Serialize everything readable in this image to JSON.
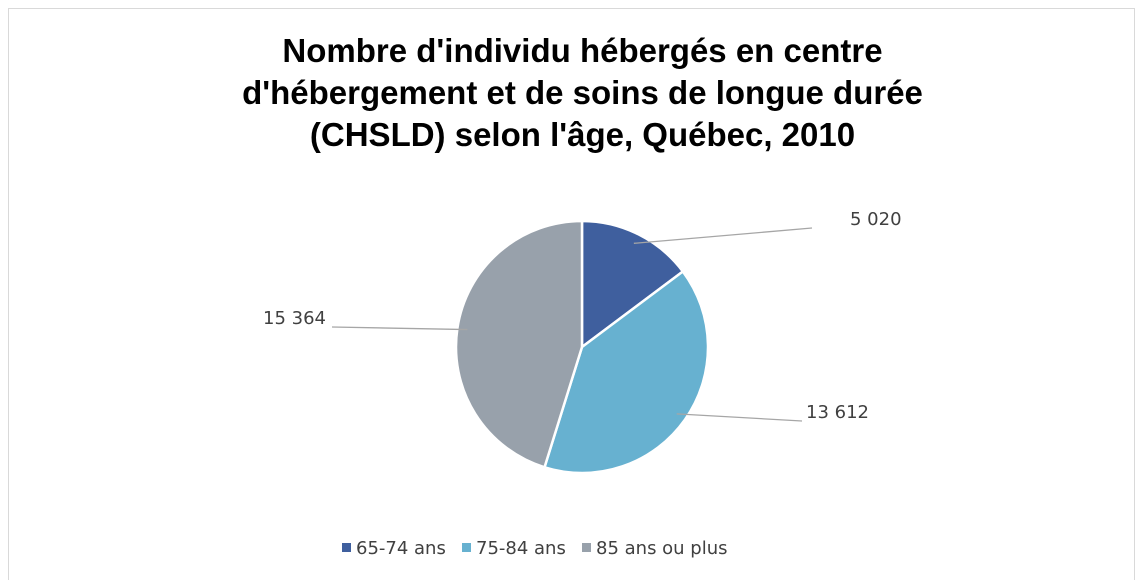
{
  "chart_data": {
    "type": "pie",
    "title": "Nombre d'individu hébergés en centre d'hébergement et de soins de longue durée (CHSLD) selon l'âge, Québec, 2010",
    "categories": [
      "65-74 ans",
      "75-84 ans",
      "85 ans ou plus"
    ],
    "values": [
      5020,
      13612,
      15364
    ],
    "value_labels": [
      "5 020",
      "13 612",
      "15 364"
    ],
    "colors": [
      "#3f5f9e",
      "#67b1d0",
      "#98a1ab"
    ],
    "legend": "bottom"
  }
}
